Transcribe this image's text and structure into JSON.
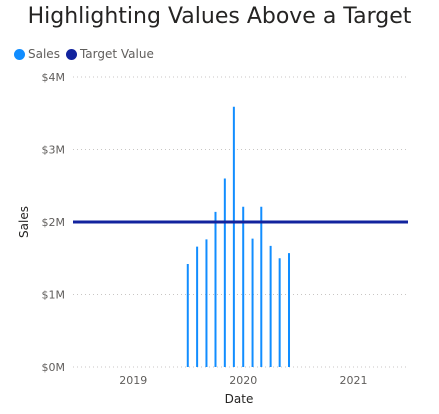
{
  "chart_data": {
    "type": "bar",
    "title": "Highlighting Values Above a Target",
    "xlabel": "Date",
    "ylabel": "Sales",
    "ylim": [
      0,
      4000000
    ],
    "xlim": [
      "2018-06-15",
      "2021-07-01"
    ],
    "y_ticks": [
      0,
      1000000,
      2000000,
      3000000,
      4000000
    ],
    "y_tick_labels": [
      "$0M",
      "$1M",
      "$2M",
      "$3M",
      "$4M"
    ],
    "x_ticks": [
      "2019-01-01",
      "2020-01-01",
      "2021-01-01"
    ],
    "x_tick_labels": [
      "2019",
      "2020",
      "2021"
    ],
    "grid": true,
    "legend": "top-left",
    "series": [
      {
        "name": "Sales",
        "type": "bar",
        "color": "#118DFF",
        "x": [
          "2019-07-01",
          "2019-08-01",
          "2019-09-01",
          "2019-10-01",
          "2019-11-01",
          "2019-12-01",
          "2020-01-01",
          "2020-02-01",
          "2020-03-01",
          "2020-04-01",
          "2020-05-01",
          "2020-06-01"
        ],
        "values": [
          1420000,
          1660000,
          1760000,
          2140000,
          2600000,
          3590000,
          2210000,
          1770000,
          2210000,
          1670000,
          1500000,
          1570000
        ]
      },
      {
        "name": "Target Value",
        "type": "line",
        "color": "#12239E",
        "value": 2000000
      }
    ]
  }
}
